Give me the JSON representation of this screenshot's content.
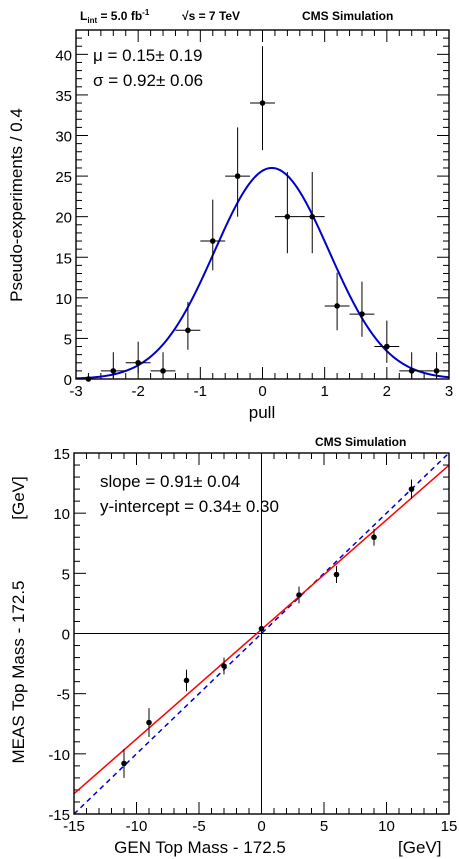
{
  "chart_data": [
    {
      "type": "scatter",
      "header": {
        "lumi_prefix": "L",
        "lumi_sub": "int",
        "lumi_value": " = 5.0 fb",
        "lumi_exp": "-1",
        "energy": "√s = 7 TeV",
        "label": "CMS  Simulation"
      },
      "stats": {
        "mu": "μ = 0.15± 0.19",
        "sigma": "σ = 0.92± 0.06"
      },
      "xlabel": "pull",
      "ylabel": "Pseudo-experiments / 0.4",
      "xlim": [
        -3,
        3
      ],
      "ylim": [
        0,
        43
      ],
      "xticks": [
        "-3",
        "-2",
        "-1",
        "0",
        "1",
        "2",
        "3"
      ],
      "yticks": [
        "0",
        "5",
        "10",
        "15",
        "20",
        "25",
        "30",
        "35",
        "40"
      ],
      "series": [
        {
          "points": [
            {
              "x": -2.8,
              "y": 0,
              "ylo": 0,
              "yhi": 0
            },
            {
              "x": -2.4,
              "y": 1,
              "ylo": 0,
              "yhi": 3.3
            },
            {
              "x": -2.0,
              "y": 2,
              "ylo": 0.7,
              "yhi": 4.6
            },
            {
              "x": -1.6,
              "y": 1,
              "ylo": 0,
              "yhi": 3.3
            },
            {
              "x": -1.2,
              "y": 6,
              "ylo": 3.6,
              "yhi": 9.5
            },
            {
              "x": -0.8,
              "y": 17,
              "ylo": 13.4,
              "yhi": 22.1
            },
            {
              "x": -0.4,
              "y": 25,
              "ylo": 20.0,
              "yhi": 31.0
            },
            {
              "x": 0.0,
              "y": 34,
              "ylo": 28.2,
              "yhi": 41.0
            },
            {
              "x": 0.4,
              "y": 20,
              "ylo": 15.5,
              "yhi": 25.5
            },
            {
              "x": 0.8,
              "y": 20,
              "ylo": 15.5,
              "yhi": 25.5
            },
            {
              "x": 1.2,
              "y": 9,
              "ylo": 6.0,
              "yhi": 13.1
            },
            {
              "x": 1.6,
              "y": 8,
              "ylo": 5.2,
              "yhi": 12.0
            },
            {
              "x": 2.0,
              "y": 4,
              "ylo": 2.0,
              "yhi": 7.2
            },
            {
              "x": 2.4,
              "y": 1,
              "ylo": 0,
              "yhi": 3.3
            },
            {
              "x": 2.8,
              "y": 1,
              "ylo": 0,
              "yhi": 3.3
            }
          ],
          "xerr": 0.2
        }
      ],
      "fit": {
        "type": "gaussian",
        "mean": 0.15,
        "sigma": 0.92,
        "amplitude": 26,
        "color": "#0000cc"
      }
    },
    {
      "type": "scatter",
      "header": {
        "label": "CMS Simulation"
      },
      "stats": {
        "slope": "slope = 0.91± 0.04",
        "intercept": "y-intercept = 0.34± 0.30"
      },
      "xlabel": "GEN Top Mass - 172.5",
      "xlabel_unit": "[GeV]",
      "ylabel": "MEAS Top Mass - 172.5",
      "ylabel_unit": "[GeV]",
      "xlim": [
        -15,
        15
      ],
      "ylim": [
        -15,
        15
      ],
      "xticks": [
        "-15",
        "-10",
        "-5",
        "0",
        "5",
        "10",
        "15"
      ],
      "yticks": [
        "-15",
        "-10",
        "-5",
        "0",
        "5",
        "10",
        "15"
      ],
      "series": [
        {
          "points": [
            {
              "x": -11,
              "y": -10.8,
              "err": 1.2
            },
            {
              "x": -9,
              "y": -7.4,
              "err": 1.2
            },
            {
              "x": -6,
              "y": -3.9,
              "err": 0.9
            },
            {
              "x": -3,
              "y": -2.7,
              "err": 0.7
            },
            {
              "x": 0,
              "y": 0.4,
              "err": 0.7
            },
            {
              "x": 3,
              "y": 3.2,
              "err": 0.7
            },
            {
              "x": 6,
              "y": 4.9,
              "err": 0.7
            },
            {
              "x": 9,
              "y": 8.0,
              "err": 0.7
            },
            {
              "x": 12,
              "y": 12.0,
              "err": 0.8
            }
          ]
        }
      ],
      "fit_line": {
        "slope": 0.91,
        "intercept": 0.34,
        "color": "#ff0000"
      },
      "reference_line": {
        "slope": 1,
        "intercept": 0,
        "color": "#0000cc",
        "style": "dashed"
      }
    }
  ]
}
